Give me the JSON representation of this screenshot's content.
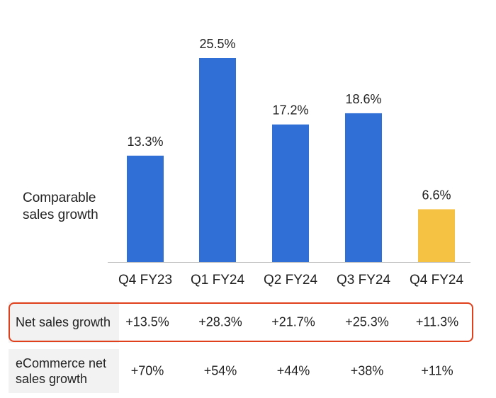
{
  "chart_data": {
    "type": "bar",
    "ylabel": "Comparable sales growth",
    "categories": [
      "Q4 FY23",
      "Q1 FY24",
      "Q2 FY24",
      "Q3 FY24",
      "Q4 FY24"
    ],
    "values": [
      13.3,
      25.5,
      17.2,
      18.6,
      6.6
    ],
    "value_labels": [
      "13.3%",
      "25.5%",
      "17.2%",
      "18.6%",
      "6.6%"
    ],
    "colors": [
      "#2f6fd6",
      "#2f6fd6",
      "#2f6fd6",
      "#2f6fd6",
      "#f5c243"
    ],
    "ylim": [
      0,
      25.5
    ]
  },
  "table": {
    "net_sales": {
      "label": "Net sales growth",
      "values": [
        "+13.5%",
        "+28.3%",
        "+21.7%",
        "+25.3%",
        "+11.3%"
      ]
    },
    "ecommerce": {
      "label": "eCommerce net sales growth",
      "values": [
        "+70%",
        "+54%",
        "+44%",
        "+38%",
        "+11%"
      ]
    }
  },
  "highlight_color": "#e0401c"
}
